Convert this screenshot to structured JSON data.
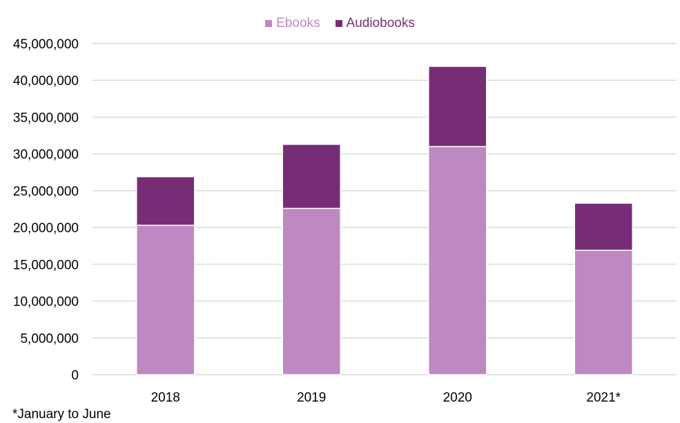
{
  "chart_data": {
    "type": "bar",
    "stacked": true,
    "categories": [
      "2018",
      "2019",
      "2020",
      "2021*"
    ],
    "series": [
      {
        "name": "Ebooks",
        "color": "#be88c2",
        "values": [
          20300000,
          22600000,
          31000000,
          16900000
        ]
      },
      {
        "name": "Audiobooks",
        "color": "#772d76",
        "values": [
          6600000,
          8700000,
          10900000,
          6400000
        ]
      }
    ],
    "ylim": [
      0,
      45000000
    ],
    "yticks": [
      0,
      5000000,
      10000000,
      15000000,
      20000000,
      25000000,
      30000000,
      35000000,
      40000000,
      45000000
    ],
    "ytick_labels": [
      "0",
      "5,000,000",
      "10,000,000",
      "15,000,000",
      "20,000,000",
      "25,000,000",
      "30,000,000",
      "35,000,000",
      "40,000,000",
      "45,000,000"
    ],
    "grid": true,
    "legend_position": "top-center",
    "gridline_color": "#d9d9d9"
  },
  "footnote": "*January to June"
}
